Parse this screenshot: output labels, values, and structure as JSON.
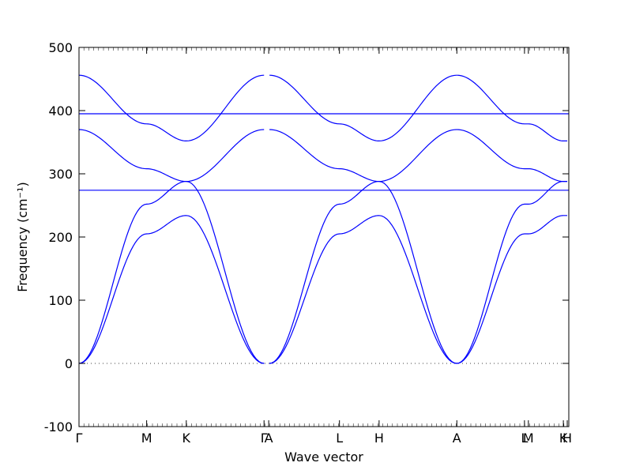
{
  "chart_data": {
    "type": "line",
    "title": "",
    "xlabel": "Wave vector",
    "ylabel": "Frequency (cm⁻¹)",
    "ylim": [
      -100,
      500
    ],
    "yticks": [
      -100,
      0,
      100,
      200,
      300,
      400,
      500
    ],
    "zero_line": {
      "y": 0,
      "style": "dotted"
    },
    "line_color": "#0000ff",
    "x_points": [
      0,
      0.87,
      1.38,
      2.38,
      2.45,
      3.35,
      3.86,
      4.86,
      5.73,
      6.25
    ],
    "x_labels": [
      "Γ",
      "M",
      "K",
      "Γ",
      "A",
      "L",
      "H",
      "A",
      "L",
      "M",
      "K",
      "H"
    ],
    "xtick_positions": [
      0,
      0.87,
      1.38,
      2.38,
      2.44,
      3.35,
      3.86,
      4.86,
      5.73,
      5.78,
      6.23,
      6.28
    ],
    "xlim": [
      0,
      6.3
    ],
    "series": [
      {
        "values_x": [
          0,
          0.87,
          1.38,
          2.38
        ],
        "values_y": [
          0,
          205,
          234,
          0
        ]
      },
      {
        "values_x": [
          0,
          0.87,
          1.38,
          2.38
        ],
        "values_y": [
          0,
          252,
          288,
          0
        ]
      },
      {
        "values_x": [
          0,
          0.87,
          1.38,
          2.38
        ],
        "values_y": [
          370,
          308,
          288,
          370
        ]
      },
      {
        "values_x": [
          0,
          0.87,
          1.38,
          2.38
        ],
        "values_y": [
          456,
          379,
          352,
          456
        ]
      },
      {
        "values_x": [
          0,
          6.3
        ],
        "values_y": [
          274,
          274
        ]
      },
      {
        "values_x": [
          0,
          6.3
        ],
        "values_y": [
          395,
          395
        ]
      },
      {
        "values_x": [
          2.45,
          3.35,
          3.86,
          4.86
        ],
        "values_y": [
          0,
          205,
          234,
          0
        ]
      },
      {
        "values_x": [
          2.45,
          3.35,
          3.86,
          4.86
        ],
        "values_y": [
          0,
          252,
          288,
          0
        ]
      },
      {
        "values_x": [
          2.45,
          3.35,
          3.86,
          4.86
        ],
        "values_y": [
          370,
          308,
          288,
          370
        ]
      },
      {
        "values_x": [
          2.45,
          3.35,
          3.86,
          4.86
        ],
        "values_y": [
          456,
          379,
          352,
          456
        ]
      },
      {
        "values_x": [
          4.86,
          5.73,
          5.78,
          6.23,
          6.28
        ],
        "values_y": [
          0,
          205,
          205,
          234,
          234
        ]
      },
      {
        "values_x": [
          4.86,
          5.73,
          5.78,
          6.23,
          6.28
        ],
        "values_y": [
          0,
          252,
          252,
          288,
          288
        ]
      },
      {
        "values_x": [
          4.86,
          5.73,
          5.78,
          6.23,
          6.28
        ],
        "values_y": [
          370,
          308,
          308,
          288,
          288
        ]
      },
      {
        "values_x": [
          4.86,
          5.73,
          5.78,
          6.23,
          6.28
        ],
        "values_y": [
          456,
          379,
          379,
          352,
          352
        ]
      }
    ]
  }
}
